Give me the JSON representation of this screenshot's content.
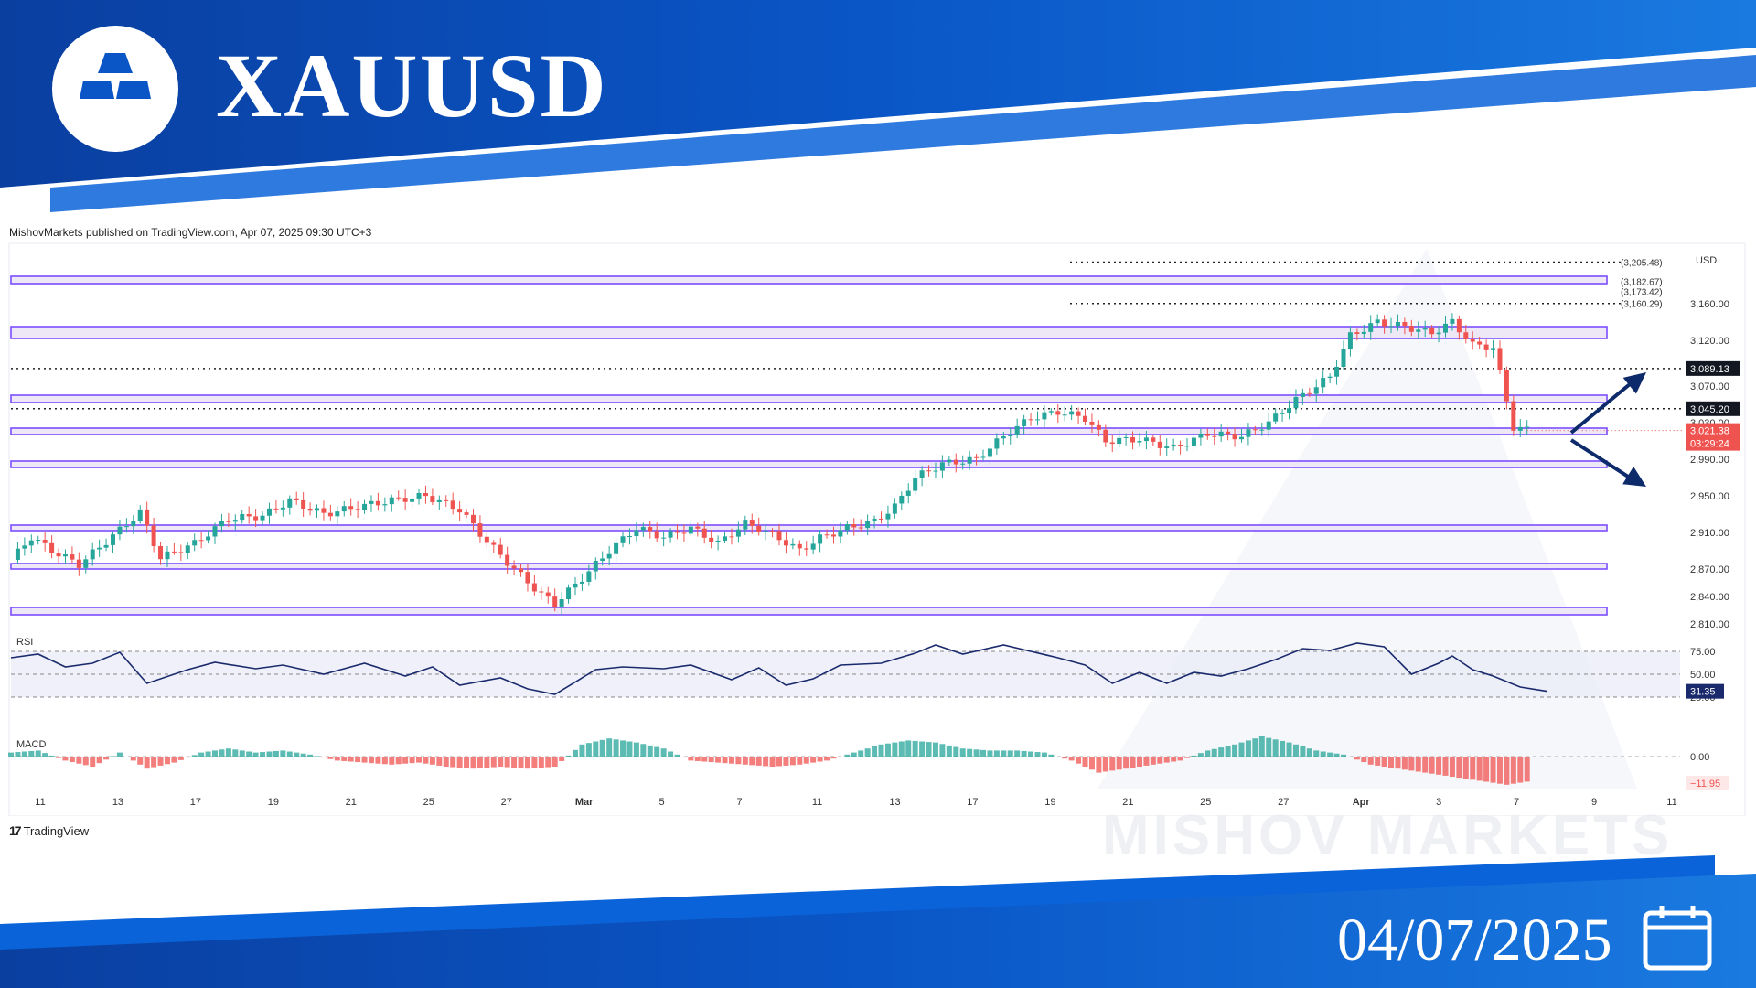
{
  "header": {
    "title": "XAUUSD",
    "logo_icon": "gold-bars-icon"
  },
  "published": "MishovMarkets published on TradingView.com, Apr 07, 2025 09:30 UTC+3",
  "footer": {
    "tradingview_label": "TradingView",
    "date": "04/07/2025",
    "calendar_icon": "calendar-icon"
  },
  "watermark": "MISHOV  MARKETS",
  "colors": {
    "brand_blue": "#0a56c7",
    "bull": "#26a69a",
    "bear": "#ef5350",
    "zone": "#7c4dff",
    "rsi": "#1a2a6c"
  },
  "chart_data": {
    "type": "candlestick",
    "currency": "USD",
    "ylim": [
      2810,
      3220
    ],
    "price_ticks": [
      3160,
      3120,
      3070,
      3030,
      2990,
      2950,
      2910,
      2870,
      2840,
      2810
    ],
    "price_tick_labels": [
      "3,160.00",
      "3,120.00",
      "3,070.00",
      "3,030.00",
      "2,990.00",
      "2,950.00",
      "2,910.00",
      "2,870.00",
      "2,840.00",
      "2,810.00"
    ],
    "x_labels": [
      "11",
      "13",
      "17",
      "19",
      "21",
      "25",
      "27",
      "Mar",
      "5",
      "7",
      "11",
      "13",
      "17",
      "19",
      "21",
      "25",
      "27",
      "Apr",
      "3",
      "7",
      "9",
      "11"
    ],
    "dotted_levels": [
      {
        "value": 3205.48,
        "label": "(3,205.48)"
      },
      {
        "value": 3182.67,
        "label": "(3,182.67)"
      },
      {
        "value": 3173.42,
        "label": "(3,173.42)"
      },
      {
        "value": 3160.29,
        "label": "(3,160.29)"
      }
    ],
    "marked_levels": [
      {
        "value": 3089.13,
        "label": "3,089.13"
      },
      {
        "value": 3045.2,
        "label": "3,045.20"
      }
    ],
    "last_price": {
      "value": 3021.38,
      "label": "3,021.38",
      "countdown": "03:29:24"
    },
    "zones": [
      {
        "low": 3182,
        "high": 3190
      },
      {
        "low": 3122,
        "high": 3135
      },
      {
        "low": 3052,
        "high": 3060
      },
      {
        "low": 3017,
        "high": 3024
      },
      {
        "low": 2981,
        "high": 2988
      },
      {
        "low": 2912,
        "high": 2918
      },
      {
        "low": 2870,
        "high": 2876
      },
      {
        "low": 2820,
        "high": 2828
      }
    ],
    "arrows": [
      "up-right",
      "down-right"
    ],
    "anchors": [
      [
        0,
        2880
      ],
      [
        3,
        2905
      ],
      [
        6,
        2890
      ],
      [
        10,
        2875
      ],
      [
        14,
        2900
      ],
      [
        19,
        2932
      ],
      [
        22,
        2882
      ],
      [
        27,
        2898
      ],
      [
        32,
        2925
      ],
      [
        37,
        2928
      ],
      [
        41,
        2945
      ],
      [
        46,
        2930
      ],
      [
        51,
        2938
      ],
      [
        56,
        2945
      ],
      [
        61,
        2950
      ],
      [
        66,
        2935
      ],
      [
        70,
        2900
      ],
      [
        74,
        2870
      ],
      [
        78,
        2842
      ],
      [
        80,
        2832
      ],
      [
        84,
        2860
      ],
      [
        88,
        2890
      ],
      [
        92,
        2915
      ],
      [
        96,
        2905
      ],
      [
        100,
        2915
      ],
      [
        104,
        2898
      ],
      [
        108,
        2920
      ],
      [
        112,
        2908
      ],
      [
        116,
        2890
      ],
      [
        119,
        2904
      ],
      [
        123,
        2915
      ],
      [
        127,
        2922
      ],
      [
        130,
        2938
      ],
      [
        133,
        2970
      ],
      [
        137,
        2985
      ],
      [
        142,
        2990
      ],
      [
        146,
        3015
      ],
      [
        150,
        3035
      ],
      [
        154,
        3042
      ],
      [
        158,
        3035
      ],
      [
        161,
        3010
      ],
      [
        166,
        3012
      ],
      [
        171,
        3002
      ],
      [
        176,
        3018
      ],
      [
        181,
        3015
      ],
      [
        185,
        3030
      ],
      [
        189,
        3055
      ],
      [
        194,
        3080
      ],
      [
        197,
        3125
      ],
      [
        201,
        3140
      ],
      [
        205,
        3135
      ],
      [
        209,
        3128
      ],
      [
        212,
        3140
      ],
      [
        215,
        3115
      ],
      [
        218,
        3112
      ],
      [
        221,
        3025
      ],
      [
        223,
        3022
      ]
    ],
    "rsi": {
      "label": "RSI",
      "current": 31.35,
      "levels": [
        75,
        50,
        25
      ],
      "level_labels": [
        "75.00",
        "50.00",
        "25.00"
      ],
      "points": [
        [
          0,
          68
        ],
        [
          4,
          72
        ],
        [
          8,
          58
        ],
        [
          12,
          62
        ],
        [
          16,
          74
        ],
        [
          20,
          40
        ],
        [
          26,
          55
        ],
        [
          30,
          63
        ],
        [
          36,
          56
        ],
        [
          40,
          60
        ],
        [
          46,
          50
        ],
        [
          52,
          62
        ],
        [
          58,
          48
        ],
        [
          62,
          58
        ],
        [
          66,
          38
        ],
        [
          72,
          46
        ],
        [
          76,
          34
        ],
        [
          80,
          28
        ],
        [
          86,
          55
        ],
        [
          90,
          58
        ],
        [
          96,
          56
        ],
        [
          100,
          60
        ],
        [
          106,
          44
        ],
        [
          110,
          57
        ],
        [
          114,
          38
        ],
        [
          118,
          45
        ],
        [
          122,
          60
        ],
        [
          128,
          62
        ],
        [
          133,
          73
        ],
        [
          136,
          82
        ],
        [
          140,
          72
        ],
        [
          146,
          82
        ],
        [
          150,
          75
        ],
        [
          154,
          68
        ],
        [
          158,
          60
        ],
        [
          162,
          40
        ],
        [
          166,
          52
        ],
        [
          170,
          40
        ],
        [
          174,
          52
        ],
        [
          178,
          48
        ],
        [
          182,
          56
        ],
        [
          186,
          66
        ],
        [
          190,
          78
        ],
        [
          194,
          76
        ],
        [
          198,
          84
        ],
        [
          202,
          80
        ],
        [
          206,
          50
        ],
        [
          210,
          62
        ],
        [
          212,
          70
        ],
        [
          215,
          55
        ],
        [
          218,
          48
        ],
        [
          222,
          36
        ],
        [
          226,
          31.35
        ]
      ]
    },
    "macd": {
      "label": "MACD",
      "current": -11.95,
      "zero_label": "0.00",
      "current_label": "−11.95",
      "hist": [
        [
          0,
          2
        ],
        [
          4,
          3
        ],
        [
          8,
          -2
        ],
        [
          12,
          -5
        ],
        [
          16,
          2
        ],
        [
          20,
          -6
        ],
        [
          24,
          -3
        ],
        [
          28,
          2
        ],
        [
          32,
          4
        ],
        [
          36,
          2
        ],
        [
          40,
          3
        ],
        [
          44,
          1
        ],
        [
          48,
          -2
        ],
        [
          52,
          -3
        ],
        [
          56,
          -4
        ],
        [
          60,
          -3
        ],
        [
          64,
          -5
        ],
        [
          68,
          -6
        ],
        [
          72,
          -5
        ],
        [
          76,
          -6
        ],
        [
          80,
          -5
        ],
        [
          84,
          6
        ],
        [
          88,
          9
        ],
        [
          92,
          7
        ],
        [
          96,
          4
        ],
        [
          100,
          -2
        ],
        [
          104,
          -3
        ],
        [
          108,
          -4
        ],
        [
          112,
          -5
        ],
        [
          116,
          -4
        ],
        [
          120,
          -2
        ],
        [
          124,
          2
        ],
        [
          128,
          6
        ],
        [
          132,
          8
        ],
        [
          136,
          7
        ],
        [
          140,
          4
        ],
        [
          144,
          3
        ],
        [
          148,
          3
        ],
        [
          152,
          2
        ],
        [
          156,
          -2
        ],
        [
          160,
          -8
        ],
        [
          164,
          -6
        ],
        [
          168,
          -4
        ],
        [
          172,
          -2
        ],
        [
          176,
          3
        ],
        [
          180,
          6
        ],
        [
          184,
          10
        ],
        [
          188,
          7
        ],
        [
          192,
          3
        ],
        [
          196,
          1
        ],
        [
          200,
          -4
        ],
        [
          204,
          -6
        ],
        [
          208,
          -8
        ],
        [
          212,
          -10
        ],
        [
          216,
          -12
        ],
        [
          220,
          -14
        ],
        [
          224,
          -11.95
        ]
      ]
    }
  }
}
